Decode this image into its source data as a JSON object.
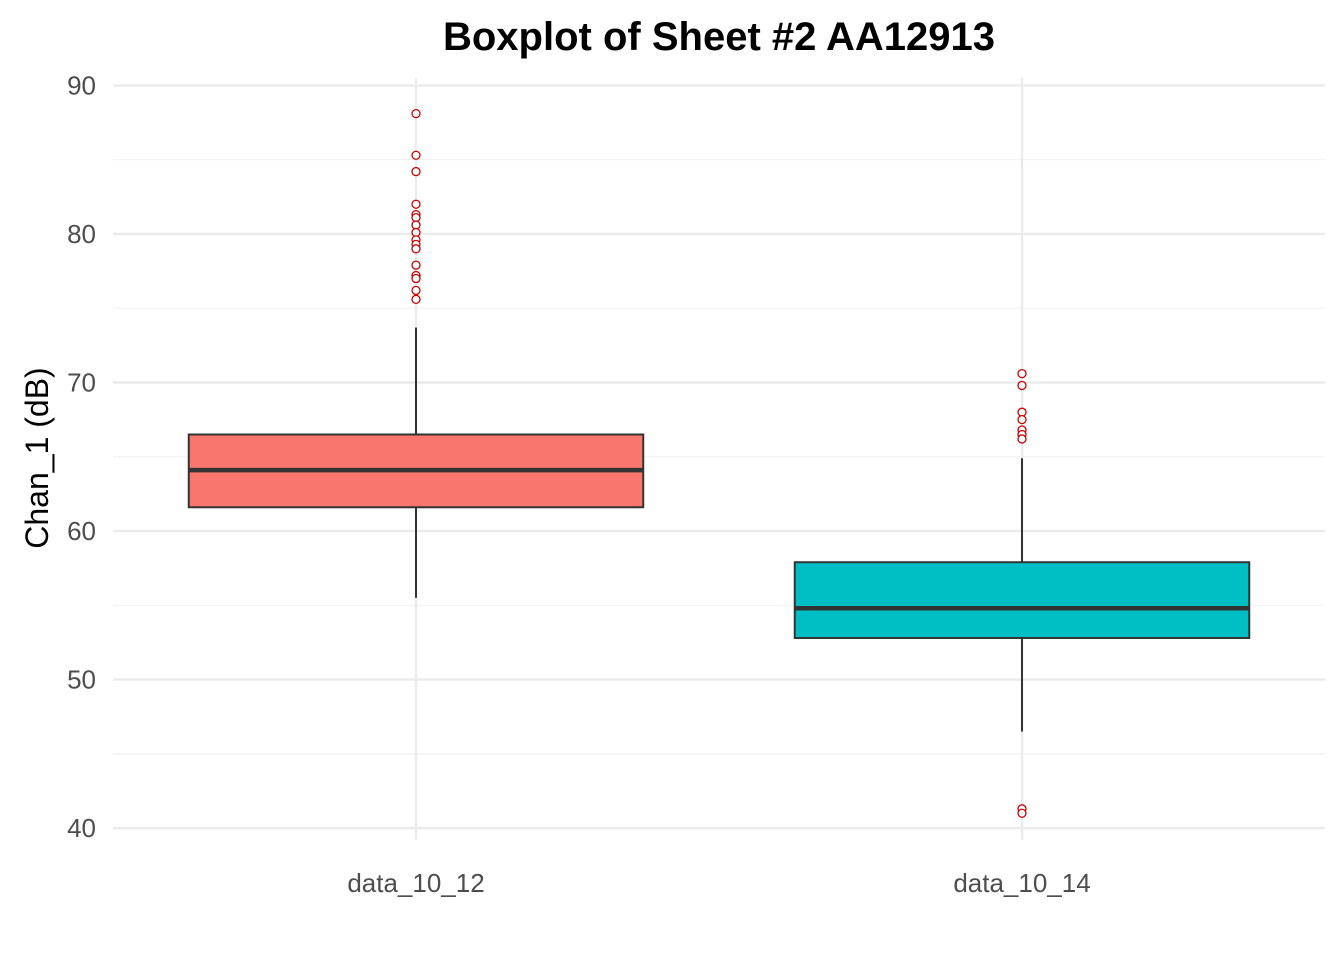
{
  "chart_data": {
    "type": "boxplot",
    "title": "Boxplot of Sheet #2 AA12913",
    "xlabel": "",
    "ylabel": "Chan_1 (dB)",
    "ylim": [
      39.2,
      90.5
    ],
    "yticks": [
      40,
      50,
      60,
      70,
      80,
      90
    ],
    "grid": true,
    "legend": "none",
    "outlier_color": "#cc0000",
    "box_edge_color": "#333333",
    "categories": [
      "data_10_12",
      "data_10_14"
    ],
    "boxes": [
      {
        "category": "data_10_12",
        "color": "#F8766D",
        "whisker_low": 55.5,
        "q1": 61.6,
        "median": 64.1,
        "q3": 66.5,
        "whisker_high": 73.7,
        "outliers": [
          88.1,
          85.3,
          84.2,
          82.0,
          81.3,
          81.1,
          80.6,
          80.1,
          79.6,
          79.3,
          79.0,
          77.9,
          77.2,
          77.0,
          76.2,
          75.6
        ]
      },
      {
        "category": "data_10_14",
        "color": "#00BFC4",
        "whisker_low": 46.5,
        "q1": 52.8,
        "median": 54.8,
        "q3": 57.9,
        "whisker_high": 64.9,
        "outliers": [
          70.6,
          69.8,
          68.0,
          67.5,
          66.8,
          66.5,
          66.2,
          41.3,
          41.0
        ]
      }
    ]
  }
}
